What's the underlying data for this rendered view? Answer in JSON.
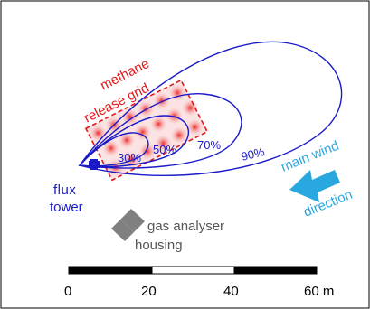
{
  "grid_label": {
    "line1": "methane",
    "line2": "release grid"
  },
  "tower_label": {
    "line1": "flux",
    "line2": "tower"
  },
  "wind_label": {
    "line1": "main wind",
    "line2": "direction"
  },
  "housing_label": {
    "line1": "gas analyser",
    "line2": "housing"
  },
  "footprint_contours": [
    "30%",
    "50%",
    "70%",
    "90%"
  ],
  "scale_bar": {
    "ticks": [
      "0",
      "20",
      "40",
      "60 m"
    ]
  },
  "colors": {
    "contour": "#1a1ac8",
    "grid": "#e31a1c",
    "wind": "#29a8e0",
    "housing": "#808080",
    "tower": "#1a1ac8",
    "frame": "#000000"
  }
}
